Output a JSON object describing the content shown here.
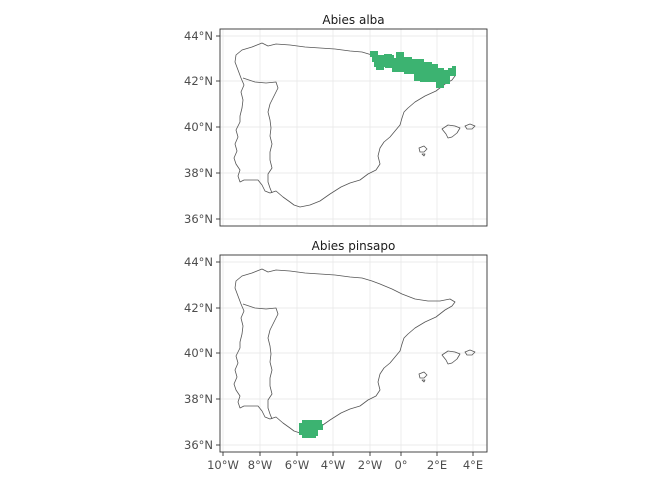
{
  "panels": [
    {
      "title": "Abies alba",
      "cells_color": "#3cb371",
      "range": "Pyrenees / Catalonia, approx. 0.8°W–3.2°E, 41.8°N–43.2°N"
    },
    {
      "title": "Abies pinsapo",
      "cells_color": "#3cb371",
      "range": "Serranía de Ronda, approx. 5.6°W–4.8°W, 36.5°N–37.0°N"
    }
  ],
  "axes": {
    "y_ticks": [
      {
        "label": "44°N",
        "lat": 44
      },
      {
        "label": "42°N",
        "lat": 42
      },
      {
        "label": "40°N",
        "lat": 40
      },
      {
        "label": "38°N",
        "lat": 38
      },
      {
        "label": "36°N",
        "lat": 36
      }
    ],
    "x_ticks": [
      {
        "label": "10°W",
        "lon": -10
      },
      {
        "label": "8°W",
        "lon": -8
      },
      {
        "label": "6°W",
        "lon": -6
      },
      {
        "label": "4°W",
        "lon": -4
      },
      {
        "label": "2°W",
        "lon": -2
      },
      {
        "label": "0°",
        "lon": 0
      },
      {
        "label": "2°E",
        "lon": 2
      },
      {
        "label": "4°E",
        "lon": 4
      }
    ]
  }
}
